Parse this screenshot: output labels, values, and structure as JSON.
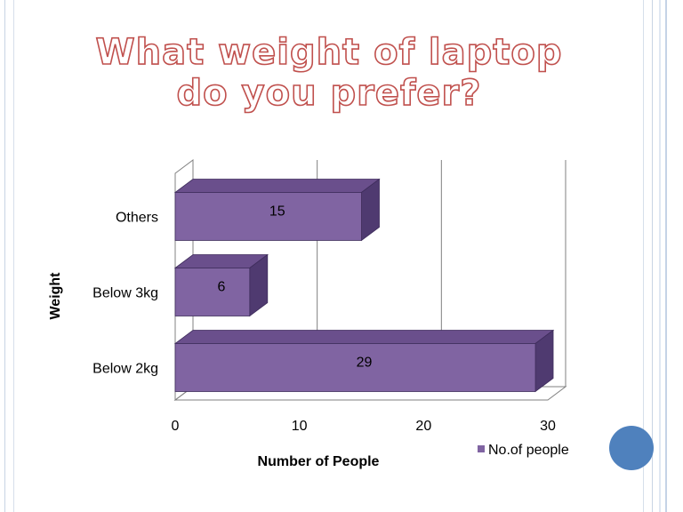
{
  "slide": {
    "title_line1": "What weight of laptop",
    "title_line2": "do you prefer?"
  },
  "chart_data": {
    "type": "bar",
    "orientation": "horizontal",
    "categories": [
      "Below 2kg",
      "Below 3kg",
      "Others"
    ],
    "series": [
      {
        "name": "No.of people",
        "values": [
          29,
          6,
          15
        ]
      }
    ],
    "xlabel": "Number of People",
    "ylabel": "Weight",
    "xlim": [
      0,
      30
    ],
    "xticks": [
      0,
      10,
      20,
      30
    ],
    "grid": true,
    "legend": "bottom-right",
    "colors": {
      "bar": "#8064a2",
      "bar_top": "#6a4f8c",
      "bar_side": "#4f3a70"
    }
  }
}
